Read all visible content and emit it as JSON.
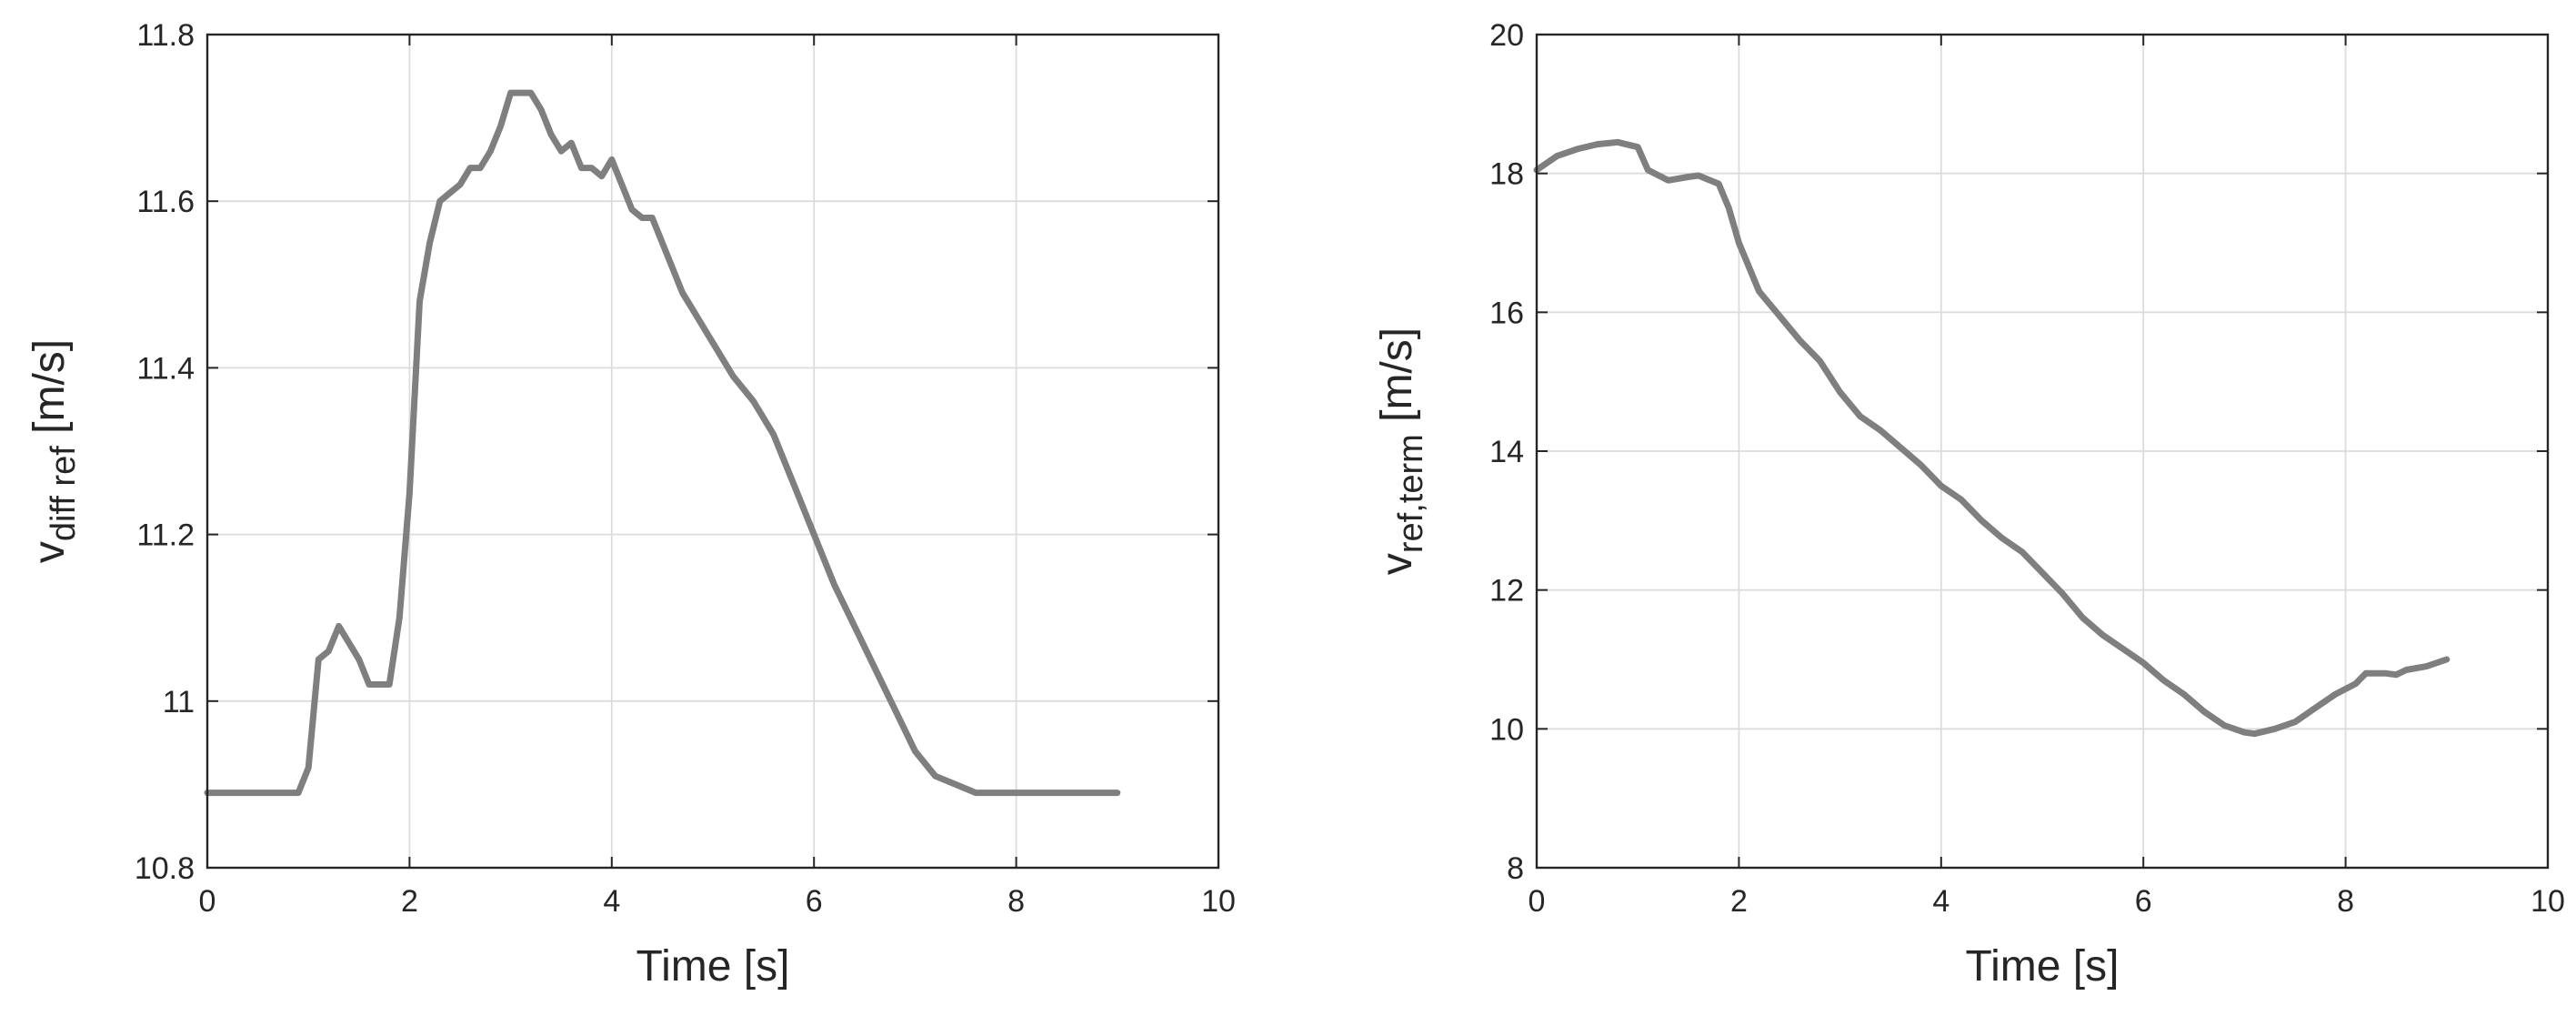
{
  "chart_data": [
    {
      "type": "line",
      "xlabel": "Time [s]",
      "ylabel": "v",
      "ylabel_sub": "diff ref",
      "ylabel_unit": " [m/s]",
      "xlim": [
        0,
        10
      ],
      "ylim": [
        10.8,
        11.8
      ],
      "xticks": [
        0,
        2,
        4,
        6,
        8,
        10
      ],
      "xtick_labels": [
        "0",
        "2",
        "4",
        "6",
        "8",
        "10"
      ],
      "yticks": [
        10.8,
        11.0,
        11.2,
        11.4,
        11.6,
        11.8
      ],
      "ytick_labels": [
        "10.8",
        "11",
        "11.2",
        "11.4",
        "11.6",
        "11.8"
      ],
      "grid": true,
      "series_color": "#7f7f7f",
      "series": [
        {
          "x": [
            0,
            0.9,
            1.0,
            1.1,
            1.2,
            1.3,
            1.4,
            1.5,
            1.6,
            1.7,
            1.8,
            1.9,
            2.0,
            2.1,
            2.2,
            2.3,
            2.4,
            2.5,
            2.6,
            2.7,
            2.8,
            2.9,
            3.0,
            3.1,
            3.2,
            3.3,
            3.4,
            3.5,
            3.6,
            3.7,
            3.8,
            3.9,
            4.0,
            4.1,
            4.2,
            4.3,
            4.4,
            4.5,
            4.6,
            4.7,
            4.8,
            5.0,
            5.2,
            5.4,
            5.6,
            5.8,
            6.0,
            6.2,
            6.4,
            6.6,
            6.8,
            7.0,
            7.2,
            7.4,
            7.6,
            7.8,
            8.0,
            8.4,
            9.0
          ],
          "y": [
            10.89,
            10.89,
            10.92,
            11.05,
            11.06,
            11.09,
            11.07,
            11.05,
            11.02,
            11.02,
            11.02,
            11.1,
            11.25,
            11.48,
            11.55,
            11.6,
            11.61,
            11.62,
            11.64,
            11.64,
            11.66,
            11.69,
            11.73,
            11.73,
            11.73,
            11.71,
            11.68,
            11.66,
            11.67,
            11.64,
            11.64,
            11.63,
            11.65,
            11.62,
            11.59,
            11.58,
            11.58,
            11.55,
            11.52,
            11.49,
            11.47,
            11.43,
            11.39,
            11.36,
            11.32,
            11.26,
            11.2,
            11.14,
            11.09,
            11.04,
            10.99,
            10.94,
            10.91,
            10.9,
            10.89,
            10.89,
            10.89,
            10.89,
            10.89
          ]
        }
      ]
    },
    {
      "type": "line",
      "xlabel": "Time [s]",
      "ylabel": "v",
      "ylabel_sub": "ref,term",
      "ylabel_unit": " [m/s]",
      "xlim": [
        0,
        10
      ],
      "ylim": [
        8,
        20
      ],
      "xticks": [
        0,
        2,
        4,
        6,
        8,
        10
      ],
      "xtick_labels": [
        "0",
        "2",
        "4",
        "6",
        "8",
        "10"
      ],
      "yticks": [
        8,
        10,
        12,
        14,
        16,
        18,
        20
      ],
      "ytick_labels": [
        "8",
        "10",
        "12",
        "14",
        "16",
        "18",
        "20"
      ],
      "grid": true,
      "series_color": "#7f7f7f",
      "series": [
        {
          "x": [
            0,
            0.2,
            0.4,
            0.6,
            0.8,
            1.0,
            1.1,
            1.3,
            1.5,
            1.6,
            1.8,
            1.9,
            2.0,
            2.2,
            2.4,
            2.6,
            2.8,
            3.0,
            3.2,
            3.4,
            3.6,
            3.8,
            4.0,
            4.2,
            4.4,
            4.6,
            4.8,
            5.0,
            5.2,
            5.4,
            5.6,
            5.8,
            6.0,
            6.2,
            6.4,
            6.6,
            6.8,
            7.0,
            7.1,
            7.3,
            7.5,
            7.7,
            7.9,
            8.1,
            8.2,
            8.3,
            8.4,
            8.5,
            8.6,
            8.8,
            9.0
          ],
          "y": [
            18.05,
            18.25,
            18.35,
            18.42,
            18.45,
            18.38,
            18.05,
            17.9,
            17.95,
            17.97,
            17.85,
            17.5,
            17.0,
            16.3,
            15.95,
            15.6,
            15.3,
            14.85,
            14.5,
            14.3,
            14.05,
            13.8,
            13.5,
            13.3,
            13.0,
            12.75,
            12.55,
            12.25,
            11.95,
            11.6,
            11.35,
            11.15,
            10.95,
            10.7,
            10.5,
            10.25,
            10.05,
            9.95,
            9.93,
            10.0,
            10.1,
            10.3,
            10.5,
            10.65,
            10.8,
            10.8,
            10.8,
            10.78,
            10.85,
            10.9,
            11.0
          ]
        }
      ]
    }
  ]
}
